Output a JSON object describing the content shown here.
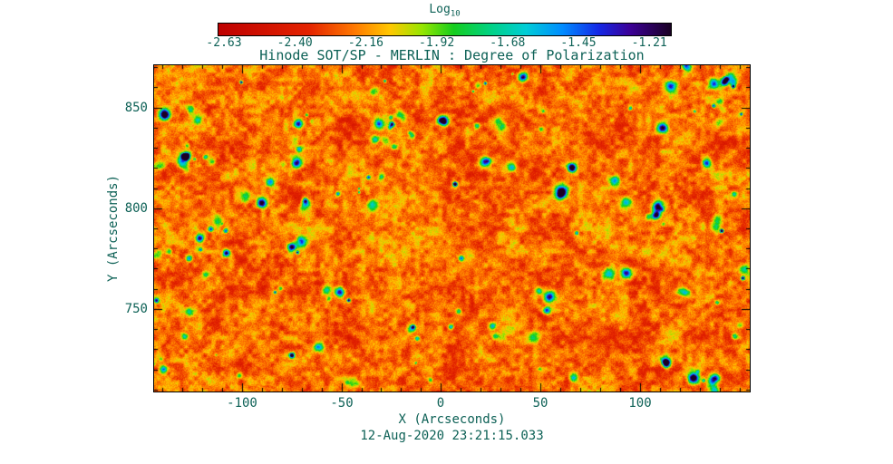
{
  "figure": {
    "title": "Hinode SOT/SP - MERLIN : Degree of Polarization",
    "timestamp": "12-Aug-2020 23:21:15.033",
    "text_color": "#0d6156",
    "background_color": "#ffffff",
    "frame_color": "#000000"
  },
  "colorbar": {
    "label": "Log",
    "label_sub": "10",
    "tick_labels": [
      "-2.63",
      "-2.40",
      "-2.16",
      "-1.92",
      "-1.68",
      "-1.45",
      "-1.21"
    ]
  },
  "axes": {
    "x": {
      "label": "X (Arcseconds)",
      "tick_labels": [
        "-100",
        "-50",
        "0",
        "50",
        "100"
      ]
    },
    "y": {
      "label": "Y (Arcseconds)",
      "tick_labels": [
        "850",
        "800",
        "750"
      ]
    }
  },
  "chart_data": {
    "type": "heatmap",
    "title": "Hinode SOT/SP - MERLIN : Degree of Polarization",
    "xlabel": "X (Arcseconds)",
    "ylabel": "Y (Arcseconds)",
    "xlim": [
      -144,
      155
    ],
    "ylim": [
      709,
      871
    ],
    "x_major_ticks": [
      -100,
      -50,
      0,
      50,
      100
    ],
    "y_major_ticks": [
      750,
      800,
      850
    ],
    "minor_tick_step": 10,
    "colorbar": {
      "label": "Log10",
      "ticks": [
        -2.63,
        -2.4,
        -2.16,
        -1.92,
        -1.68,
        -1.45,
        -1.21
      ],
      "value_range": [
        -2.63,
        -1.21
      ]
    },
    "colormap_stops": [
      {
        "pos": 0.0,
        "color": [
          190,
          0,
          0
        ]
      },
      {
        "pos": 0.2,
        "color": [
          228,
          35,
          0
        ]
      },
      {
        "pos": 0.3,
        "color": [
          255,
          120,
          0
        ]
      },
      {
        "pos": 0.38,
        "color": [
          255,
          200,
          0
        ]
      },
      {
        "pos": 0.45,
        "color": [
          150,
          230,
          0
        ]
      },
      {
        "pos": 0.52,
        "color": [
          20,
          205,
          30
        ]
      },
      {
        "pos": 0.6,
        "color": [
          0,
          210,
          130
        ]
      },
      {
        "pos": 0.68,
        "color": [
          0,
          205,
          215
        ]
      },
      {
        "pos": 0.76,
        "color": [
          0,
          140,
          255
        ]
      },
      {
        "pos": 0.84,
        "color": [
          20,
          40,
          230
        ]
      },
      {
        "pos": 0.91,
        "color": [
          60,
          0,
          150
        ]
      },
      {
        "pos": 1.0,
        "color": [
          25,
          0,
          35
        ]
      }
    ],
    "field_description": "Log10 degree of polarization map: granular red/orange background mostly between -2.6 and -2.2, with scattered compact magnetic features reaching -1.9 to -1.2 (green/cyan/blue patches, darkest blue-black cores near -1.21)",
    "render_seed": 20200812,
    "feature_blob_count": 170
  }
}
